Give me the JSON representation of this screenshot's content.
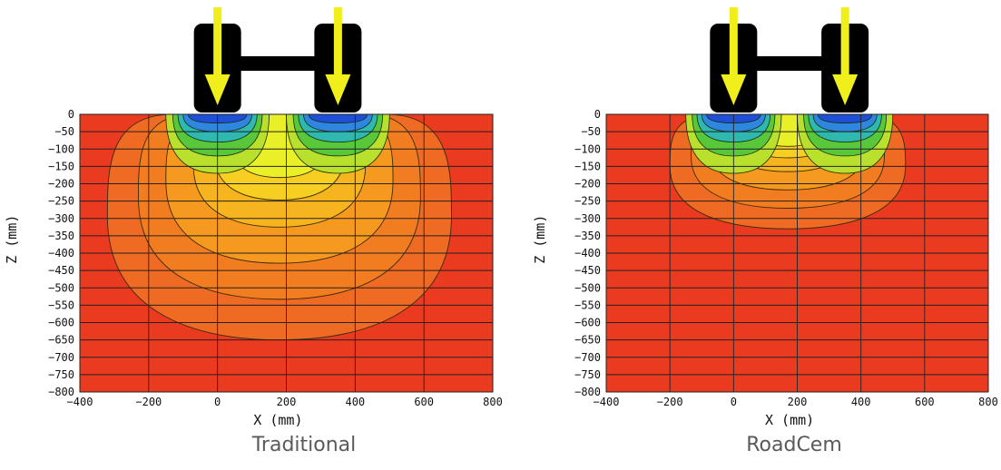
{
  "chart_data": [
    {
      "type": "heatmap",
      "caption": "Traditional",
      "xlabel": "X (mm)",
      "ylabel": "Z (mm)",
      "xlim": [
        -400,
        800
      ],
      "ylim": [
        -800,
        0
      ],
      "xticks": [
        -400,
        -200,
        0,
        200,
        400,
        600,
        800
      ],
      "yticks": [
        0,
        -50,
        -100,
        -150,
        -200,
        -250,
        -300,
        -350,
        -400,
        -450,
        -500,
        -550,
        -600,
        -650,
        -700,
        -750,
        -800
      ],
      "load_positions_x": [
        0,
        350
      ],
      "stress_bulb_depth": -650,
      "stress_bulb_x_range": [
        -320,
        680
      ],
      "grid": true,
      "colors": {
        "background": "#ea3a1f",
        "outer": "#ef6a22",
        "mid": "#f59a1e",
        "inner": "#f7cf22",
        "core": "#eaf028",
        "green": "#58c83a",
        "blue": "#1e4fd6"
      }
    },
    {
      "type": "heatmap",
      "caption": "RoadCem",
      "xlabel": "X (mm)",
      "ylabel": "Z (mm)",
      "xlim": [
        -400,
        800
      ],
      "ylim": [
        -800,
        0
      ],
      "xticks": [
        -400,
        -200,
        0,
        200,
        400,
        600,
        800
      ],
      "yticks": [
        0,
        -50,
        -100,
        -150,
        -200,
        -250,
        -300,
        -350,
        -400,
        -450,
        -500,
        -550,
        -600,
        -650,
        -700,
        -750,
        -800
      ],
      "load_positions_x": [
        0,
        350
      ],
      "stress_bulb_depth": -330,
      "stress_bulb_x_range": [
        -200,
        540
      ],
      "grid": true,
      "colors": {
        "background": "#ea3a1f",
        "outer": "#ef6a22",
        "mid": "#f59a1e",
        "inner": "#f7cf22",
        "core": "#eaf028",
        "green": "#58c83a",
        "blue": "#1e4fd6"
      }
    }
  ],
  "icons": {
    "load": "downward-arrow-icon",
    "axle": "wheel-axle-icon"
  }
}
